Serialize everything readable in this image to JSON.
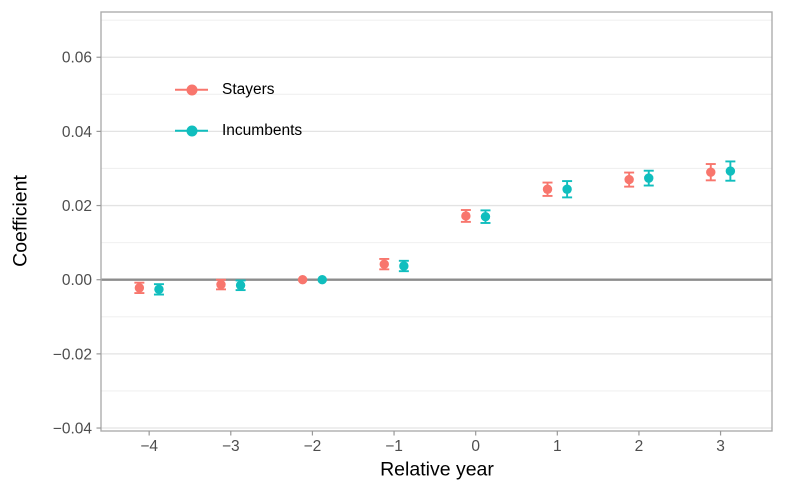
{
  "figure": {
    "background": "#FFFFFF"
  },
  "chart_data": {
    "type": "scatter",
    "subtype": "point-estimates-with-error-bars",
    "title": "",
    "xlabel": "Relative year",
    "ylabel": "Coefficient",
    "x": [
      -4,
      -3,
      -2,
      -1,
      0,
      1,
      2,
      3
    ],
    "xlim": [
      -4.59,
      3.63
    ],
    "ylim": [
      -0.0408,
      0.0722
    ],
    "xtick_values": [
      -4,
      -3,
      -2,
      -1,
      0,
      1,
      2,
      3
    ],
    "xtick_labels": [
      "−4",
      "−3",
      "−2",
      "−1",
      "0",
      "1",
      "2",
      "3"
    ],
    "ytick_values": [
      -0.04,
      -0.02,
      0,
      0.02,
      0.04,
      0.06
    ],
    "ytick_labels": [
      "−0.04",
      "−0.02",
      "0.00",
      "0.02",
      "0.04",
      "0.06"
    ],
    "yminor_values": [
      -0.03,
      -0.01,
      0.01,
      0.03,
      0.05,
      0.07
    ],
    "grid": {
      "horizontal": true,
      "vertical": false
    },
    "zero_line": {
      "y": 0,
      "color": "#8C8C8C"
    },
    "reference_year": -2,
    "dodge": 0.12,
    "legend_position": "inside-top-left",
    "series": [
      {
        "name": "Stayers",
        "color": "#F8766D",
        "values": [
          -0.0022,
          -0.0013,
          0,
          0.0042,
          0.0172,
          0.0244,
          0.027,
          0.029
        ],
        "ci_low": [
          -0.0036,
          -0.0026,
          null,
          0.0028,
          0.0156,
          0.0226,
          0.0251,
          0.0268
        ],
        "ci_high": [
          -0.0008,
          0.0,
          null,
          0.0056,
          0.0188,
          0.0262,
          0.0289,
          0.0312
        ]
      },
      {
        "name": "Incumbents",
        "color": "#10BEBE",
        "values": [
          -0.0026,
          -0.0015,
          0,
          0.0037,
          0.017,
          0.0244,
          0.0274,
          0.0293
        ],
        "ci_low": [
          -0.004,
          -0.0028,
          null,
          0.0023,
          0.0153,
          0.0222,
          0.0254,
          0.0267
        ],
        "ci_high": [
          -0.0012,
          -0.0002,
          null,
          0.0051,
          0.0187,
          0.0266,
          0.0294,
          0.0319
        ]
      }
    ],
    "style": {
      "grid_major_color": "#E3E3E3",
      "grid_minor_color": "#F0F0F0",
      "panel_border_color": "#ADADAD",
      "tick_mark_color": "#999999",
      "tick_label_color": "#4D4D4D"
    }
  }
}
